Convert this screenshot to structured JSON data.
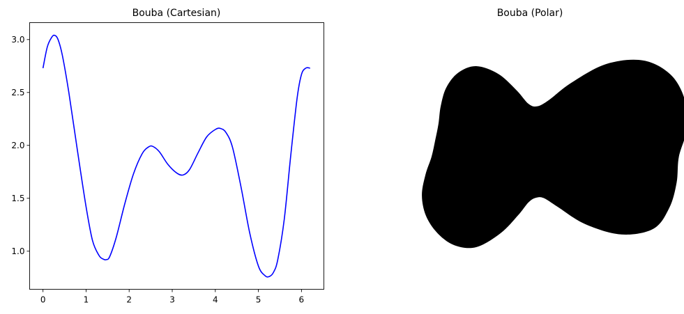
{
  "chart_data": [
    {
      "type": "line",
      "title": "Bouba (Cartesian)",
      "xlabel": "",
      "ylabel": "",
      "xlim": [
        -0.31,
        6.52
      ],
      "ylim": [
        0.64,
        3.16
      ],
      "xticks": [
        0,
        1,
        2,
        3,
        4,
        5,
        6
      ],
      "xtick_labels": [
        "0",
        "1",
        "2",
        "3",
        "4",
        "5",
        "6"
      ],
      "yticks": [
        1.0,
        1.5,
        2.0,
        2.5,
        3.0
      ],
      "ytick_labels": [
        "1.0",
        "1.5",
        "2.0",
        "2.5",
        "3.0"
      ],
      "grid": false,
      "series": [
        {
          "color": "#0000ff",
          "x": [
            0.0,
            0.1,
            0.2,
            0.27,
            0.35,
            0.45,
            0.6,
            0.8,
            1.0,
            1.15,
            1.3,
            1.4,
            1.47,
            1.55,
            1.7,
            1.9,
            2.1,
            2.3,
            2.45,
            2.55,
            2.7,
            2.9,
            3.1,
            3.25,
            3.4,
            3.6,
            3.8,
            4.0,
            4.12,
            4.25,
            4.4,
            4.6,
            4.8,
            5.0,
            5.15,
            5.25,
            5.35,
            5.45,
            5.6,
            5.75,
            5.9,
            6.0,
            6.1,
            6.2
          ],
          "y": [
            2.73,
            2.93,
            3.02,
            3.04,
            3.0,
            2.85,
            2.5,
            1.95,
            1.42,
            1.1,
            0.96,
            0.925,
            0.92,
            0.95,
            1.13,
            1.45,
            1.73,
            1.92,
            1.985,
            1.99,
            1.94,
            1.82,
            1.74,
            1.72,
            1.77,
            1.93,
            2.08,
            2.15,
            2.16,
            2.12,
            1.98,
            1.6,
            1.17,
            0.86,
            0.77,
            0.76,
            0.8,
            0.92,
            1.3,
            1.9,
            2.45,
            2.67,
            2.73,
            2.73
          ]
        }
      ]
    },
    {
      "type": "area",
      "title": "Bouba (Polar)",
      "axis": "off",
      "fill_color": "#000000",
      "theta_deg": [
        0,
        10,
        20,
        30,
        40,
        50,
        60,
        70,
        80,
        90,
        100,
        110,
        120,
        130,
        140,
        150,
        160,
        170,
        180,
        190,
        200,
        210,
        220,
        230,
        240,
        250,
        260,
        270,
        280,
        290,
        300,
        310,
        320,
        330,
        340,
        350,
        360
      ],
      "radius": [
        2.73,
        2.92,
        3.02,
        2.98,
        2.72,
        2.2,
        1.55,
        1.1,
        0.93,
        0.96,
        1.22,
        1.6,
        1.9,
        1.99,
        1.95,
        1.84,
        1.74,
        1.72,
        1.76,
        1.9,
        2.06,
        2.15,
        2.16,
        2.1,
        1.9,
        1.48,
        1.08,
        0.83,
        0.76,
        0.8,
        1.05,
        1.6,
        2.2,
        2.62,
        2.72,
        2.73,
        2.73
      ]
    }
  ]
}
